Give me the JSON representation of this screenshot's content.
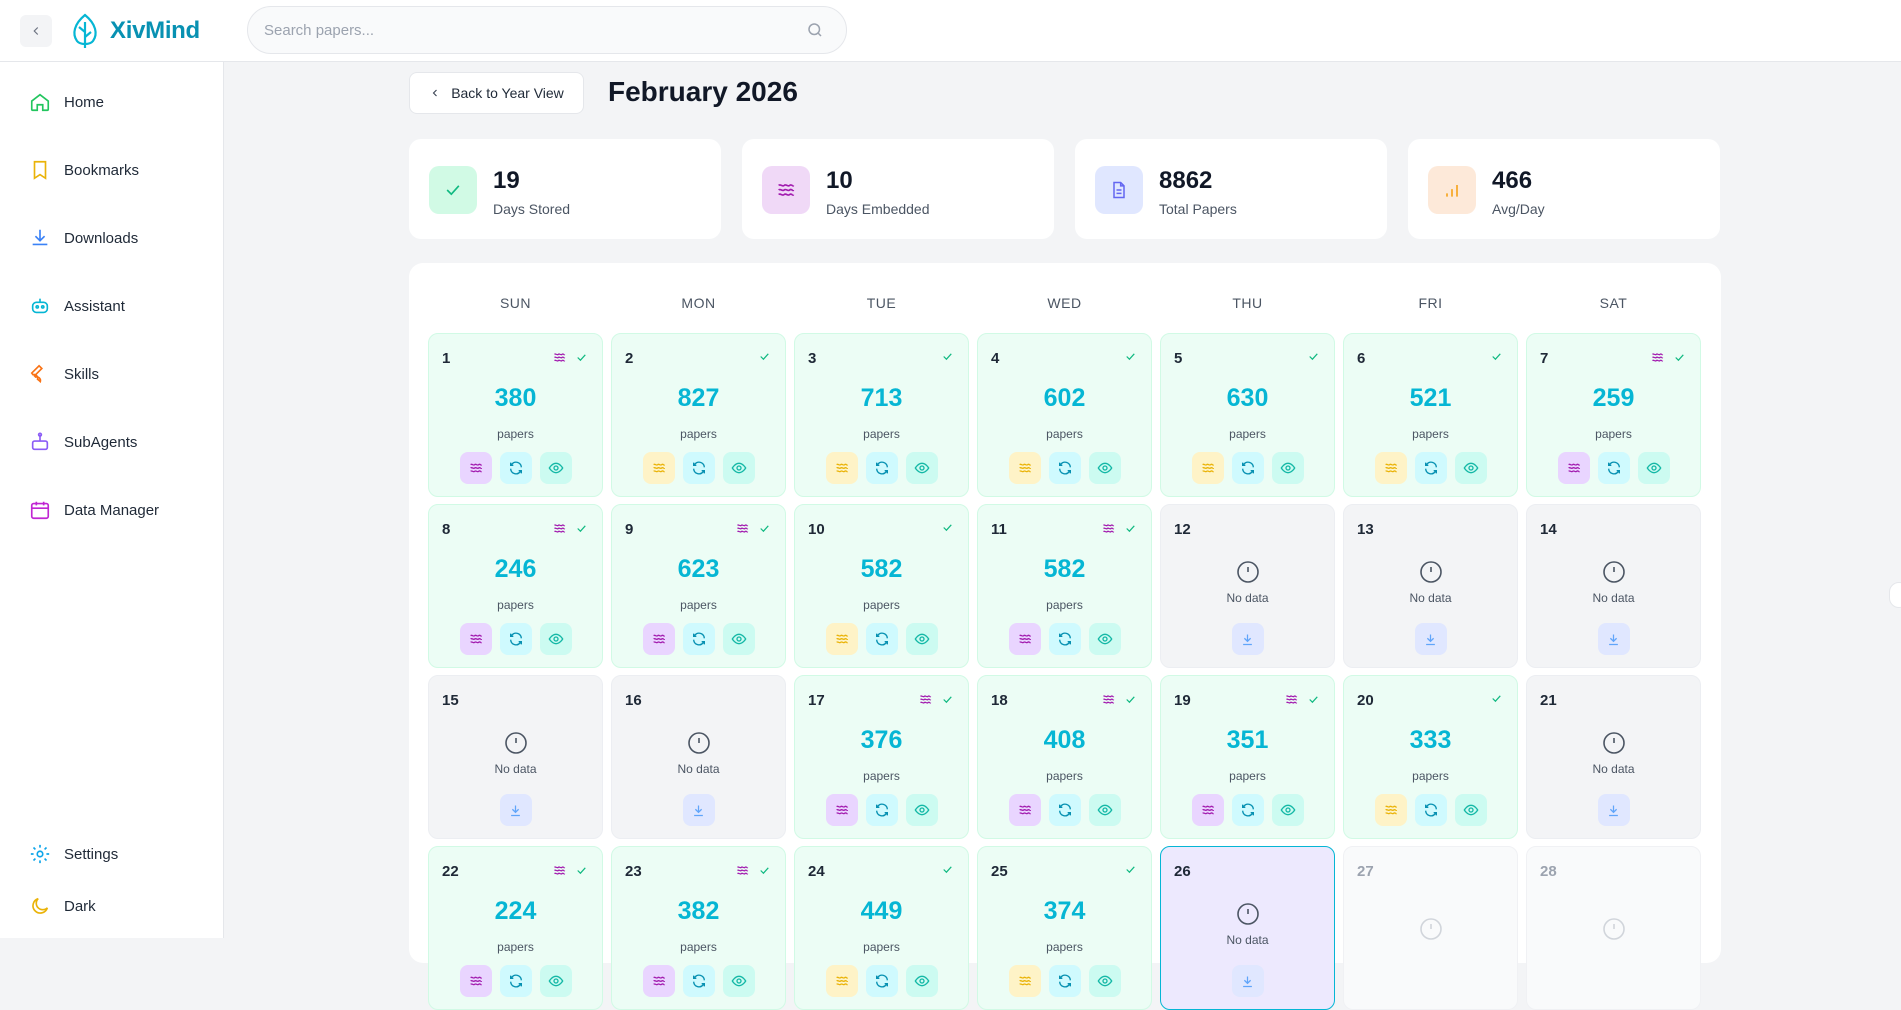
{
  "app": {
    "name": "XivMind"
  },
  "search": {
    "placeholder": "Search papers..."
  },
  "sidebar": {
    "items": [
      {
        "label": "Home",
        "icon": "home-icon"
      },
      {
        "label": "Bookmarks",
        "icon": "bookmark-icon"
      },
      {
        "label": "Downloads",
        "icon": "download-icon"
      },
      {
        "label": "Assistant",
        "icon": "robot-icon"
      },
      {
        "label": "Skills",
        "icon": "wrench-icon"
      },
      {
        "label": "SubAgents",
        "icon": "subagent-icon"
      },
      {
        "label": "Data Manager",
        "icon": "calendar-icon"
      }
    ],
    "bottom": [
      {
        "label": "Settings",
        "icon": "gear-icon"
      },
      {
        "label": "Dark",
        "icon": "moon-icon"
      }
    ]
  },
  "header": {
    "back_label": "Back to Year View",
    "title": "February 2026"
  },
  "stats": [
    {
      "value": "19",
      "label": "Days Stored",
      "icon": "check-icon",
      "color": "#10b981"
    },
    {
      "value": "10",
      "label": "Days Embedded",
      "icon": "wave-icon",
      "color": "#a21caf"
    },
    {
      "value": "8862",
      "label": "Total Papers",
      "icon": "document-icon",
      "color": "#6366f1"
    },
    {
      "value": "466",
      "label": "Avg/Day",
      "icon": "bar-chart-icon",
      "color": "#f59e0b"
    }
  ],
  "calendar": {
    "weekdays": [
      "SUN",
      "MON",
      "TUE",
      "WED",
      "THU",
      "FRI",
      "SAT"
    ],
    "papers_label": "papers",
    "no_data_label": "No data",
    "days": [
      {
        "day": "1",
        "status": "stored",
        "count": "380",
        "embedded": true
      },
      {
        "day": "2",
        "status": "stored",
        "count": "827",
        "embedded": false
      },
      {
        "day": "3",
        "status": "stored",
        "count": "713",
        "embedded": false
      },
      {
        "day": "4",
        "status": "stored",
        "count": "602",
        "embedded": false
      },
      {
        "day": "5",
        "status": "stored",
        "count": "630",
        "embedded": false
      },
      {
        "day": "6",
        "status": "stored",
        "count": "521",
        "embedded": false
      },
      {
        "day": "7",
        "status": "stored",
        "count": "259",
        "embedded": true
      },
      {
        "day": "8",
        "status": "stored",
        "count": "246",
        "embedded": true
      },
      {
        "day": "9",
        "status": "stored",
        "count": "623",
        "embedded": true
      },
      {
        "day": "10",
        "status": "stored",
        "count": "582",
        "embedded": false
      },
      {
        "day": "11",
        "status": "stored",
        "count": "582",
        "embedded": true
      },
      {
        "day": "12",
        "status": "nodata"
      },
      {
        "day": "13",
        "status": "nodata"
      },
      {
        "day": "14",
        "status": "nodata"
      },
      {
        "day": "15",
        "status": "nodata"
      },
      {
        "day": "16",
        "status": "nodata"
      },
      {
        "day": "17",
        "status": "stored",
        "count": "376",
        "embedded": true
      },
      {
        "day": "18",
        "status": "stored",
        "count": "408",
        "embedded": true
      },
      {
        "day": "19",
        "status": "stored",
        "count": "351",
        "embedded": true
      },
      {
        "day": "20",
        "status": "stored",
        "count": "333",
        "embedded": false
      },
      {
        "day": "21",
        "status": "nodata"
      },
      {
        "day": "22",
        "status": "stored",
        "count": "224",
        "embedded": true
      },
      {
        "day": "23",
        "status": "stored",
        "count": "382",
        "embedded": true
      },
      {
        "day": "24",
        "status": "stored",
        "count": "449",
        "embedded": false
      },
      {
        "day": "25",
        "status": "stored",
        "count": "374",
        "embedded": false
      },
      {
        "day": "26",
        "status": "today"
      },
      {
        "day": "27",
        "status": "future"
      },
      {
        "day": "28",
        "status": "future"
      }
    ]
  },
  "colors": {
    "accent": "#06b6d4",
    "stored_bg": "#ecfdf5",
    "embed": "#a21caf"
  }
}
